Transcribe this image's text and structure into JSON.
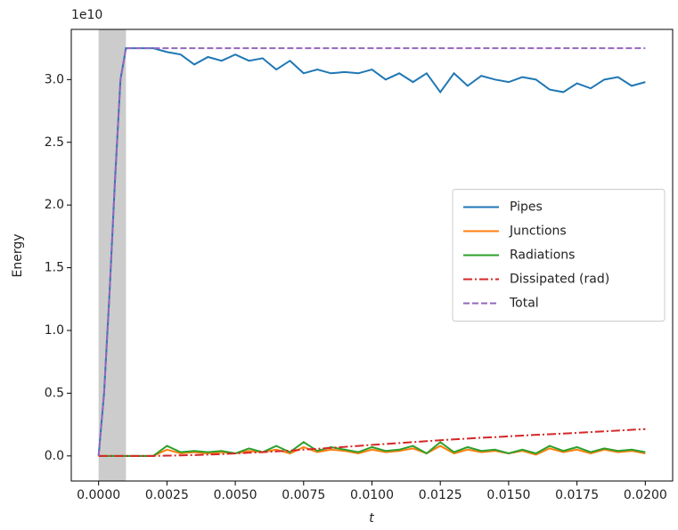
{
  "chart_data": {
    "type": "line",
    "y_label": "Energy",
    "x_label": "t",
    "y_offset_label": "1e10",
    "x": [
      0,
      0.0002,
      0.0004,
      0.0006,
      0.0008,
      0.001,
      0.0015,
      0.002,
      0.0025,
      0.003,
      0.0035,
      0.004,
      0.0045,
      0.005,
      0.0055,
      0.006,
      0.0065,
      0.007,
      0.0075,
      0.008,
      0.0085,
      0.009,
      0.0095,
      0.01,
      0.0105,
      0.011,
      0.0115,
      0.012,
      0.0125,
      0.013,
      0.0135,
      0.014,
      0.0145,
      0.015,
      0.0155,
      0.016,
      0.0165,
      0.017,
      0.0175,
      0.018,
      0.0185,
      0.019,
      0.0195,
      0.02
    ],
    "series": [
      {
        "name": "Pipes",
        "color": "#1f77b4",
        "linestyle": "solid",
        "values": [
          0,
          0.5,
          1.3,
          2.2,
          3.0,
          3.25,
          3.25,
          3.25,
          3.22,
          3.2,
          3.12,
          3.18,
          3.15,
          3.2,
          3.15,
          3.17,
          3.08,
          3.15,
          3.05,
          3.08,
          3.05,
          3.06,
          3.05,
          3.08,
          3.0,
          3.05,
          2.98,
          3.05,
          2.9,
          3.05,
          2.95,
          3.03,
          3.0,
          2.98,
          3.02,
          3.0,
          2.92,
          2.9,
          2.97,
          2.93,
          3.0,
          3.02,
          2.95,
          2.98
        ]
      },
      {
        "name": "Junctions",
        "color": "#ff7f0e",
        "linestyle": "solid",
        "values": [
          0,
          0,
          0,
          0,
          0,
          0,
          0,
          0,
          0.05,
          0.02,
          0.03,
          0.02,
          0.03,
          0.02,
          0.04,
          0.03,
          0.05,
          0.02,
          0.07,
          0.03,
          0.05,
          0.04,
          0.02,
          0.05,
          0.03,
          0.04,
          0.06,
          0.02,
          0.08,
          0.02,
          0.05,
          0.03,
          0.04,
          0.02,
          0.04,
          0.01,
          0.06,
          0.03,
          0.05,
          0.02,
          0.05,
          0.03,
          0.04,
          0.02
        ]
      },
      {
        "name": "Radiations",
        "color": "#2ca02c",
        "linestyle": "solid",
        "values": [
          0,
          0,
          0,
          0,
          0,
          0,
          0,
          0,
          0.08,
          0.03,
          0.04,
          0.03,
          0.04,
          0.02,
          0.06,
          0.03,
          0.08,
          0.03,
          0.11,
          0.04,
          0.07,
          0.05,
          0.03,
          0.07,
          0.04,
          0.05,
          0.08,
          0.02,
          0.11,
          0.03,
          0.07,
          0.04,
          0.05,
          0.02,
          0.05,
          0.02,
          0.08,
          0.04,
          0.07,
          0.03,
          0.06,
          0.04,
          0.05,
          0.03
        ]
      },
      {
        "name": "Dissipated (rad)",
        "color": "#d62728",
        "linestyle": "dashdot",
        "values": [
          0,
          0,
          0,
          0,
          0,
          0,
          0,
          0,
          0.002,
          0.004,
          0.007,
          0.01,
          0.014,
          0.02,
          0.025,
          0.03,
          0.036,
          0.042,
          0.05,
          0.057,
          0.064,
          0.072,
          0.08,
          0.088,
          0.095,
          0.103,
          0.11,
          0.118,
          0.125,
          0.132,
          0.138,
          0.145,
          0.15,
          0.156,
          0.162,
          0.168,
          0.173,
          0.178,
          0.184,
          0.19,
          0.196,
          0.202,
          0.208,
          0.214
        ]
      },
      {
        "name": "Total",
        "color": "#9467bd",
        "linestyle": "dashed",
        "values": [
          0,
          0.5,
          1.3,
          2.2,
          3.0,
          3.25,
          3.25,
          3.25,
          3.25,
          3.25,
          3.25,
          3.25,
          3.25,
          3.25,
          3.25,
          3.25,
          3.25,
          3.25,
          3.25,
          3.25,
          3.25,
          3.25,
          3.25,
          3.25,
          3.25,
          3.25,
          3.25,
          3.25,
          3.25,
          3.25,
          3.25,
          3.25,
          3.25,
          3.25,
          3.25,
          3.25,
          3.25,
          3.25,
          3.25,
          3.25,
          3.25,
          3.25,
          3.25,
          3.25
        ]
      }
    ],
    "shaded_region": [
      0,
      0.001
    ],
    "shaded_color": "#cccccc",
    "xlim": [
      -0.001,
      0.021
    ],
    "xticks": [
      {
        "value": 0,
        "label": "0.0000"
      },
      {
        "value": 0.0025,
        "label": "0.0025"
      },
      {
        "value": 0.005,
        "label": "0.0050"
      },
      {
        "value": 0.0075,
        "label": "0.0075"
      },
      {
        "value": 0.01,
        "label": "0.0100"
      },
      {
        "value": 0.0125,
        "label": "0.0125"
      },
      {
        "value": 0.015,
        "label": "0.0150"
      },
      {
        "value": 0.0175,
        "label": "0.0175"
      },
      {
        "value": 0.02,
        "label": "0.0200"
      }
    ],
    "ylim": [
      -0.2,
      3.4
    ],
    "yticks": [
      {
        "value": 0,
        "label": "0.0"
      },
      0.5,
      {
        "value": 1,
        "label": "1.0"
      },
      1.5,
      {
        "value": 2,
        "label": "2.0"
      },
      2.5,
      {
        "value": 3,
        "label": "3.0"
      }
    ],
    "grid": false,
    "legend": "center right"
  }
}
